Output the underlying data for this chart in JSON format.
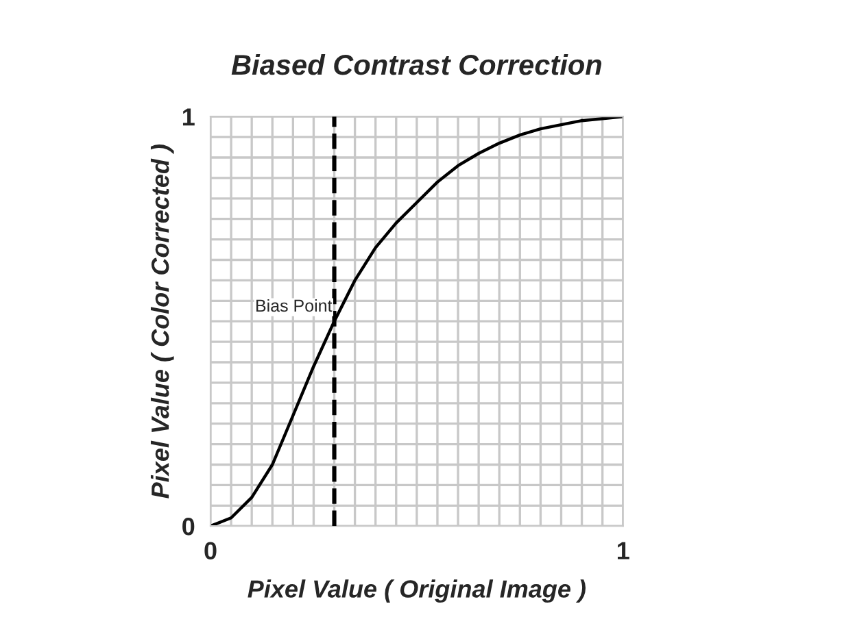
{
  "chart_data": {
    "type": "line",
    "title": "Biased Contrast Correction",
    "xlabel": "Pixel Value ( Original Image )",
    "ylabel": "Pixel Value ( Color Corrected )",
    "x": [
      0,
      0.05,
      0.1,
      0.15,
      0.2,
      0.25,
      0.3,
      0.35,
      0.4,
      0.45,
      0.5,
      0.55,
      0.6,
      0.65,
      0.7,
      0.75,
      0.8,
      0.85,
      0.9,
      0.95,
      1
    ],
    "series": [
      {
        "color": "#000000",
        "values": [
          0,
          0.02,
          0.07,
          0.15,
          0.27,
          0.39,
          0.5,
          0.6,
          0.68,
          0.74,
          0.79,
          0.84,
          0.88,
          0.91,
          0.935,
          0.955,
          0.97,
          0.98,
          0.99,
          0.995,
          1
        ]
      }
    ],
    "xlim": [
      0,
      1
    ],
    "ylim": [
      0,
      1
    ],
    "xticks": [
      0,
      1
    ],
    "yticks": [
      0,
      1
    ],
    "grid": true,
    "legend": false,
    "marker": "none",
    "line_style": "solid",
    "ref_lines": [
      {
        "axis": "x",
        "value": 0.3,
        "color": "#000000",
        "line_style": "dashed"
      }
    ],
    "annotations": [
      "Bias Point"
    ]
  }
}
